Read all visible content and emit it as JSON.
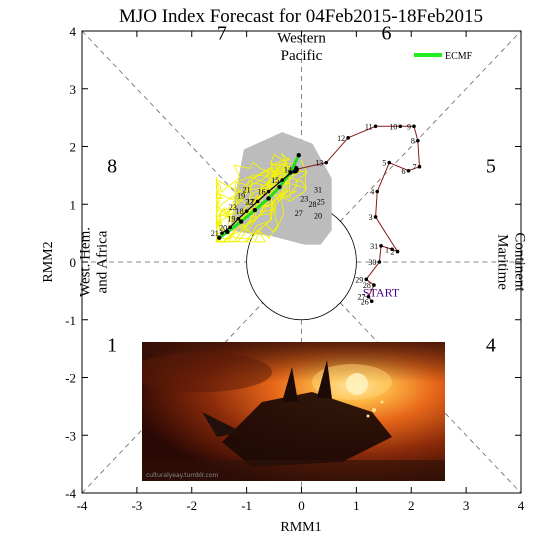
{
  "chart_data": {
    "type": "line",
    "title": "MJO Index Forecast for 04Feb2015-18Feb2015",
    "xlabel": "RMM1",
    "ylabel": "RMM2",
    "xlim": [
      -4,
      4
    ],
    "ylim": [
      -4,
      4
    ],
    "xticks": [
      "-4",
      "-3",
      "-2",
      "-1",
      "0",
      "1",
      "2",
      "3",
      "4"
    ],
    "yticks": [
      "-4",
      "-3",
      "-2",
      "-1",
      "0",
      "1",
      "2",
      "3",
      "4"
    ],
    "phases": [
      {
        "number": "1",
        "x": -3.45,
        "y": -1.55
      },
      {
        "number": "2",
        "x": -1.55,
        "y": -3.55
      },
      {
        "number": "3",
        "x": 1.55,
        "y": -3.55
      },
      {
        "number": "4",
        "x": 3.45,
        "y": -1.55
      },
      {
        "number": "5",
        "x": 3.45,
        "y": 1.55
      },
      {
        "number": "6",
        "x": 1.55,
        "y": 3.85
      },
      {
        "number": "7",
        "x": -1.45,
        "y": 3.85
      },
      {
        "number": "8",
        "x": -3.45,
        "y": 1.55
      }
    ],
    "regions": {
      "top_line1": "Western",
      "top_line2": "Pacific",
      "left_line1": "West. Hem.",
      "left_line2": "and Africa",
      "right_line1": "Maritime",
      "right_line2": "Continent"
    },
    "legend": {
      "label": "ECMF",
      "color": "#22ee22",
      "position": "top-right"
    },
    "start_label": "START",
    "observed": {
      "color": "#8b1a1a",
      "points": [
        {
          "label": "26",
          "x": 1.28,
          "y": -0.68
        },
        {
          "label": "27",
          "x": 1.22,
          "y": -0.6
        },
        {
          "label": "28",
          "x": 1.32,
          "y": -0.4
        },
        {
          "label": "29",
          "x": 1.18,
          "y": -0.3
        },
        {
          "label": "30",
          "x": 1.42,
          "y": 0.0
        },
        {
          "label": "31",
          "x": 1.45,
          "y": 0.28
        },
        {
          "label": "1",
          "x": 1.65,
          "y": 0.22
        },
        {
          "label": "2",
          "x": 1.75,
          "y": 0.18
        },
        {
          "label": "3",
          "x": 1.35,
          "y": 0.78
        },
        {
          "label": "4",
          "x": 1.38,
          "y": 1.22
        },
        {
          "label": "5",
          "x": 1.6,
          "y": 1.72
        },
        {
          "label": "6",
          "x": 1.95,
          "y": 1.58
        },
        {
          "label": "7",
          "x": 2.15,
          "y": 1.65
        },
        {
          "label": "8",
          "x": 2.12,
          "y": 2.1
        },
        {
          "label": "9",
          "x": 2.05,
          "y": 2.35
        },
        {
          "label": "10",
          "x": 1.8,
          "y": 2.35
        },
        {
          "label": "11",
          "x": 1.35,
          "y": 2.35
        },
        {
          "label": "12",
          "x": 0.85,
          "y": 2.15
        },
        {
          "label": "13",
          "x": 0.45,
          "y": 1.72
        },
        {
          "label": "14",
          "x": -0.12,
          "y": 1.6
        }
      ]
    },
    "ensemble_mean": {
      "color": "#000000",
      "points": [
        {
          "label": "15",
          "x": -0.35,
          "y": 1.42
        },
        {
          "label": "16",
          "x": -0.6,
          "y": 1.22
        },
        {
          "label": "17",
          "x": -0.8,
          "y": 1.05
        },
        {
          "label": "18",
          "x": -1.0,
          "y": 0.88
        },
        {
          "label": "19",
          "x": -1.15,
          "y": 0.75
        },
        {
          "label": "20",
          "x": -1.3,
          "y": 0.6
        },
        {
          "label": "21",
          "x": -1.45,
          "y": 0.5
        }
      ]
    },
    "green_forecast": {
      "color": "#22dd22",
      "points": [
        {
          "x": -0.05,
          "y": 1.85
        },
        {
          "x": -0.2,
          "y": 1.55
        },
        {
          "x": -0.4,
          "y": 1.3
        },
        {
          "x": -0.6,
          "y": 1.1
        },
        {
          "x": -0.85,
          "y": 0.9
        },
        {
          "x": -1.1,
          "y": 0.7
        },
        {
          "x": -1.35,
          "y": 0.52
        },
        {
          "x": -1.5,
          "y": 0.42
        }
      ]
    },
    "ensemble_labels_center": [
      {
        "label": "20",
        "x": 0.3,
        "y": 0.75
      },
      {
        "label": "25",
        "x": 0.35,
        "y": 1.0
      },
      {
        "label": "31",
        "x": 0.3,
        "y": 1.2
      },
      {
        "label": "27",
        "x": -0.05,
        "y": 0.8
      },
      {
        "label": "23",
        "x": 0.05,
        "y": 1.05
      },
      {
        "label": "28",
        "x": 0.2,
        "y": 0.95
      }
    ],
    "ensemble_labels_left": [
      {
        "label": "21",
        "x": -1.0,
        "y": 1.2
      },
      {
        "label": "22",
        "x": -0.95,
        "y": 1.0
      },
      {
        "label": "19",
        "x": -1.1,
        "y": 1.1
      },
      {
        "label": "23",
        "x": -1.25,
        "y": 0.9
      }
    ],
    "photo_credit": "culturalyeay.tumblr.com"
  }
}
